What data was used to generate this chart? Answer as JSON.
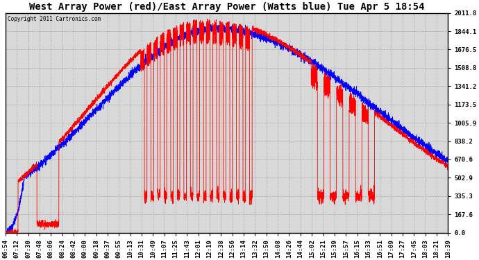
{
  "title": "West Array Power (red)/East Array Power (Watts blue) Tue Apr 5 18:54",
  "copyright": "Copyright 2011 Cartronics.com",
  "yticks": [
    0.0,
    167.6,
    335.3,
    502.9,
    670.6,
    838.2,
    1005.9,
    1173.5,
    1341.2,
    1508.8,
    1676.5,
    1844.1,
    2011.8
  ],
  "ymax": 2011.8,
  "ymin": 0.0,
  "xtick_labels": [
    "06:54",
    "07:12",
    "07:30",
    "07:48",
    "08:06",
    "08:24",
    "08:42",
    "09:00",
    "09:18",
    "09:37",
    "09:55",
    "10:13",
    "10:31",
    "10:49",
    "11:07",
    "11:25",
    "11:43",
    "12:01",
    "12:19",
    "12:38",
    "12:56",
    "13:14",
    "13:32",
    "13:50",
    "14:08",
    "14:26",
    "14:44",
    "15:02",
    "15:21",
    "15:39",
    "15:57",
    "16:15",
    "16:33",
    "16:51",
    "17:09",
    "17:27",
    "17:45",
    "18:03",
    "18:21",
    "18:39"
  ],
  "bg_color": "#ffffff",
  "plot_bg_color": "#d8d8d8",
  "grid_color": "#aaaaaa",
  "red_color": "#ff0000",
  "blue_color": "#0000ff",
  "title_fontsize": 10,
  "tick_fontsize": 6.5
}
